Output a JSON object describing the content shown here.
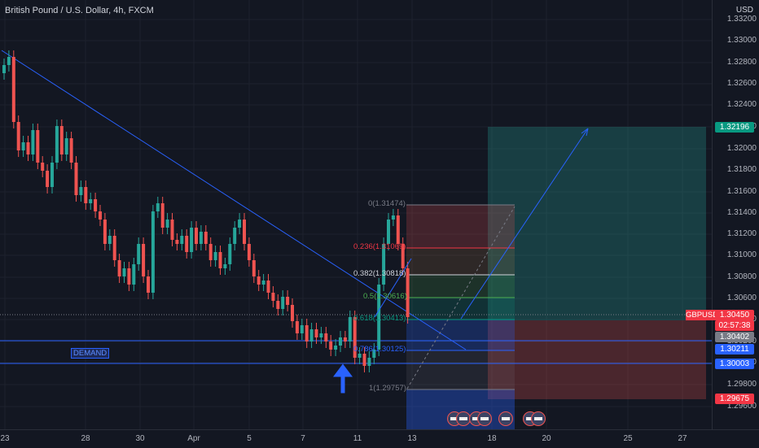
{
  "symbol_title": "British Pound / U.S. Dollar, 4h, FXCM",
  "currency": "USD",
  "price_ticks": [
    "1.33200",
    "1.33000",
    "1.32800",
    "1.32600",
    "1.32400",
    "1.32200",
    "1.32000",
    "1.31800",
    "1.31600",
    "1.31400",
    "1.31200",
    "1.31000",
    "1.30800",
    "1.30600",
    "1.30400",
    "1.30200",
    "1.30000",
    "1.29800",
    "1.29600"
  ],
  "date_labels": [
    "23",
    "28",
    "30",
    "Apr",
    "5",
    "7",
    "11",
    "13",
    "18",
    "20",
    "25",
    "27"
  ],
  "price_tags": {
    "target": "1.32196",
    "current": "1.30450",
    "countdown": "02:57:38",
    "last": "1.30402",
    "level_a": "1.30211",
    "level_b": "1.30003",
    "stop": "1.29675"
  },
  "symbol_label": "GBPUSD",
  "demand_label": "DEMAND",
  "fib_levels": [
    {
      "label": "0(1.31474)",
      "color": "#787b86"
    },
    {
      "label": "0.236(1.31069)",
      "color": "#f23645"
    },
    {
      "label": "0.382(1.30818)",
      "color": "#d1d4dc"
    },
    {
      "label": "0.5(1.30616)",
      "color": "#4caf50"
    },
    {
      "label": "0.618(1.30413)",
      "color": "#089981"
    },
    {
      "label": "0.786(1.30125)",
      "color": "#2962ff"
    },
    {
      "label": "1(1.29757)",
      "color": "#787b86"
    }
  ],
  "colors": {
    "up": "#26a69a",
    "down": "#ef5350",
    "trend": "#2962ff",
    "background": "#131722"
  }
}
